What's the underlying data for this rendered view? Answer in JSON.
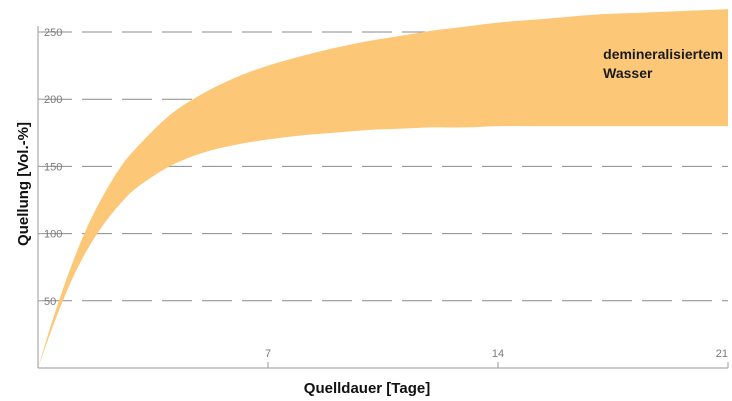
{
  "chart_data": {
    "type": "area",
    "title": "",
    "xlabel": "Quelldauer [Tage]",
    "ylabel": "Quellung [Vol.-%]",
    "xlim": [
      0,
      21
    ],
    "ylim": [
      0,
      250
    ],
    "x_ticks": [
      7,
      14,
      21
    ],
    "y_ticks": [
      50,
      100,
      150,
      200,
      250
    ],
    "grid": {
      "horizontal": true,
      "vertical": false,
      "style": "dashed"
    },
    "band": {
      "color": "#fcc877",
      "x": [
        0,
        0.5,
        1,
        1.5,
        2,
        2.5,
        3,
        4,
        5,
        6,
        7,
        8,
        9,
        10,
        11,
        12,
        13,
        14,
        15,
        16,
        17,
        18,
        19,
        20,
        21
      ],
      "upper": [
        0,
        40,
        75,
        105,
        129,
        149,
        164,
        188,
        204,
        216,
        225,
        232,
        238,
        243,
        247,
        251,
        254,
        257,
        259,
        261,
        263,
        264,
        265,
        266,
        267
      ],
      "lower": [
        0,
        34,
        64,
        88,
        107,
        122,
        134,
        150,
        160,
        166,
        170,
        173,
        175,
        177,
        178,
        179,
        179,
        180,
        180,
        180,
        180,
        180,
        180,
        180,
        180
      ]
    },
    "annotations": [
      {
        "text_lines": [
          "demineralisiertem",
          "Wasser"
        ],
        "x": 17.2,
        "y": 230
      }
    ]
  }
}
